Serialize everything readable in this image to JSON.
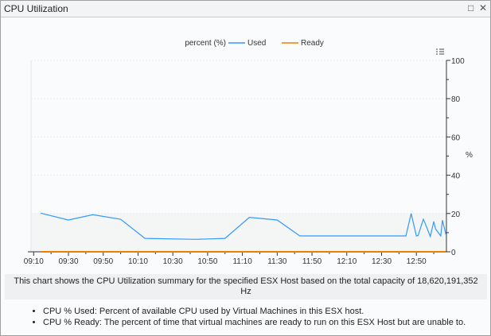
{
  "window": {
    "title": "CPU Utilization",
    "maximize_icon": "maximize-icon",
    "close_icon": "close-icon"
  },
  "chart_data": {
    "type": "line",
    "legend_title": "percent (%)",
    "legend_placement": "top-center",
    "ylabel": "%",
    "ylim": [
      0,
      100
    ],
    "yticks": [
      "0",
      "20",
      "40",
      "60",
      "80",
      "100"
    ],
    "xticks": [
      "09:10",
      "09:30",
      "09:50",
      "10:10",
      "10:30",
      "10:50",
      "11:10",
      "11:30",
      "11:50",
      "12:10",
      "12:30",
      "12:50"
    ],
    "grid": true,
    "series": [
      {
        "name": "Used",
        "color": "#3399ff",
        "x": [
          "09:14",
          "09:30",
          "09:44",
          "10:00",
          "10:14",
          "10:43",
          "11:00",
          "11:14",
          "11:30",
          "11:43",
          "12:44",
          "12:47",
          "12:50",
          "12:51",
          "12:54",
          "12:55",
          "12:58",
          "13:00",
          "13:01",
          "13:04",
          "13:05",
          "13:07"
        ],
        "values": [
          20.2,
          16.6,
          19.4,
          17,
          7,
          6.5,
          7,
          18,
          16.6,
          8.3,
          8.3,
          20,
          8.3,
          8.5,
          17,
          15,
          8,
          15.8,
          12,
          8.3,
          16.5,
          9
        ]
      },
      {
        "name": "Ready",
        "color": "#f07f00",
        "x": [
          "09:14",
          "13:07"
        ],
        "values": [
          0,
          0
        ]
      }
    ]
  },
  "description": "This chart shows the CPU Utilization summary for the specified ESX Host based on the total capacity of 18,620,191,352 Hz",
  "notes": [
    "CPU % Used: Percent of available CPU used by Virtual Machines in this ESX host.",
    "CPU % Ready: The percent of time that virtual machines are ready to run on this ESX Host but are unable to."
  ]
}
